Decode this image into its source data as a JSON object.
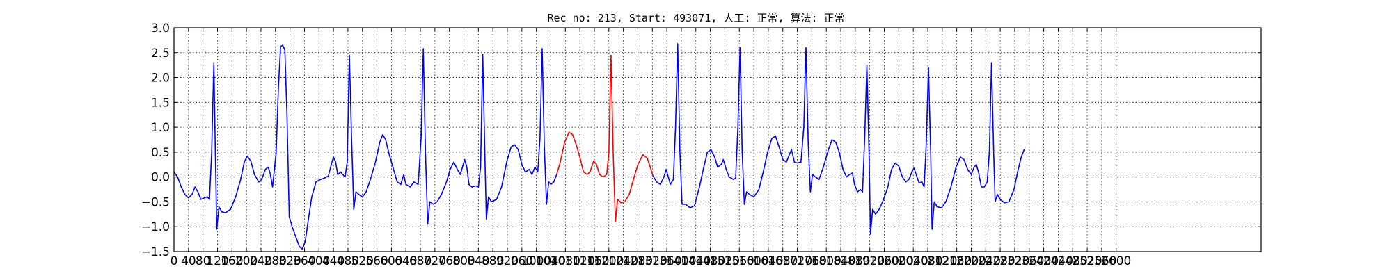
{
  "chart_data": {
    "type": "line",
    "title": "Rec_no: 213, Start: 493071, 人工: 正常, 算法: 正常",
    "xlabel": "",
    "ylabel": "",
    "xlim": [
      0,
      3000
    ],
    "ylim": [
      -1.5,
      3.0
    ],
    "grid": true,
    "grid_style": "dotted",
    "x_ticks": [
      0,
      40,
      80,
      120,
      160,
      200,
      240,
      280,
      320,
      360,
      400,
      440,
      480,
      520,
      560,
      600,
      640,
      680,
      720,
      760,
      800,
      840,
      880,
      920,
      960,
      1000,
      1040,
      1080,
      1120,
      1160,
      1200,
      1240,
      1280,
      1320,
      1360,
      1400,
      1440,
      1480,
      1520,
      1560,
      1600,
      1640,
      1680,
      1720,
      1760,
      1800,
      1840,
      1880,
      1920,
      1960,
      2000,
      2040,
      2080,
      2120,
      2160,
      2200,
      2240,
      2280,
      2320,
      2360,
      2400,
      2440,
      2480,
      2520,
      2560,
      2600
    ],
    "y_ticks": [
      -1.5,
      -1.0,
      -0.5,
      0.0,
      0.5,
      1.0,
      1.5,
      2.0,
      2.5,
      3.0
    ],
    "y_tick_labels": [
      "−1.5",
      "−1.0",
      "−0.5",
      "0.0",
      "0.5",
      "1.0",
      "1.5",
      "2.0",
      "2.5",
      "3.0"
    ],
    "series": [
      {
        "color": "#0000ff",
        "points": [
          [
            0,
            0.1
          ],
          [
            10,
            0.0
          ],
          [
            20,
            -0.2
          ],
          [
            30,
            -0.35
          ],
          [
            40,
            -0.42
          ],
          [
            50,
            -0.35
          ],
          [
            58,
            -0.2
          ],
          [
            66,
            -0.3
          ],
          [
            74,
            -0.45
          ],
          [
            84,
            -0.42
          ],
          [
            92,
            -0.4
          ],
          [
            98,
            -0.45
          ],
          [
            104,
            0.5
          ],
          [
            110,
            2.3
          ],
          [
            114,
            0.5
          ],
          [
            118,
            -1.05
          ],
          [
            124,
            -0.6
          ],
          [
            132,
            -0.7
          ],
          [
            142,
            -0.72
          ],
          [
            156,
            -0.65
          ],
          [
            170,
            -0.4
          ],
          [
            184,
            -0.05
          ],
          [
            194,
            0.3
          ],
          [
            202,
            0.42
          ],
          [
            212,
            0.32
          ],
          [
            222,
            0.05
          ],
          [
            234,
            -0.1
          ],
          [
            242,
            -0.05
          ],
          [
            252,
            0.15
          ],
          [
            260,
            0.2
          ],
          [
            266,
            0.05
          ],
          [
            272,
            -0.2
          ],
          [
            282,
            0.5
          ],
          [
            288,
            1.8
          ],
          [
            294,
            2.62
          ],
          [
            300,
            2.65
          ],
          [
            306,
            2.55
          ],
          [
            312,
            1.2
          ],
          [
            318,
            -0.8
          ],
          [
            326,
            -1.0
          ],
          [
            336,
            -1.2
          ],
          [
            346,
            -1.4
          ],
          [
            354,
            -1.45
          ],
          [
            362,
            -1.3
          ],
          [
            370,
            -0.9
          ],
          [
            380,
            -0.4
          ],
          [
            392,
            -0.1
          ],
          [
            404,
            -0.05
          ],
          [
            416,
            -0.02
          ],
          [
            426,
            0.02
          ],
          [
            434,
            0.25
          ],
          [
            440,
            0.4
          ],
          [
            446,
            0.3
          ],
          [
            452,
            0.05
          ],
          [
            460,
            0.1
          ],
          [
            466,
            0.05
          ],
          [
            472,
            0.0
          ],
          [
            478,
            0.3
          ],
          [
            484,
            2.45
          ],
          [
            490,
            0.8
          ],
          [
            496,
            -0.65
          ],
          [
            502,
            -0.3
          ],
          [
            510,
            -0.35
          ],
          [
            520,
            -0.4
          ],
          [
            530,
            -0.3
          ],
          [
            542,
            -0.05
          ],
          [
            556,
            0.3
          ],
          [
            568,
            0.7
          ],
          [
            576,
            0.85
          ],
          [
            584,
            0.75
          ],
          [
            594,
            0.45
          ],
          [
            606,
            0.15
          ],
          [
            616,
            -0.1
          ],
          [
            626,
            -0.15
          ],
          [
            634,
            0.05
          ],
          [
            640,
            -0.15
          ],
          [
            652,
            -0.2
          ],
          [
            662,
            -0.1
          ],
          [
            674,
            -0.15
          ],
          [
            682,
            0.8
          ],
          [
            688,
            2.58
          ],
          [
            694,
            0.5
          ],
          [
            700,
            -0.95
          ],
          [
            706,
            -0.5
          ],
          [
            716,
            -0.55
          ],
          [
            726,
            -0.5
          ],
          [
            738,
            -0.35
          ],
          [
            752,
            -0.1
          ],
          [
            762,
            0.15
          ],
          [
            772,
            0.3
          ],
          [
            782,
            0.15
          ],
          [
            790,
            0.05
          ],
          [
            796,
            0.2
          ],
          [
            802,
            0.35
          ],
          [
            808,
            0.2
          ],
          [
            814,
            -0.15
          ],
          [
            822,
            -0.2
          ],
          [
            832,
            -0.18
          ],
          [
            840,
            -0.2
          ],
          [
            846,
            0.2
          ],
          [
            852,
            2.47
          ],
          [
            858,
            0.4
          ],
          [
            862,
            -0.85
          ],
          [
            868,
            -0.4
          ],
          [
            876,
            -0.5
          ],
          [
            890,
            -0.45
          ],
          [
            904,
            -0.2
          ],
          [
            918,
            0.3
          ],
          [
            930,
            0.6
          ],
          [
            940,
            0.65
          ],
          [
            950,
            0.55
          ],
          [
            960,
            0.25
          ],
          [
            970,
            0.1
          ],
          [
            980,
            0.15
          ],
          [
            988,
            0.05
          ],
          [
            996,
            0.2
          ],
          [
            1004,
            0.1
          ],
          [
            1010,
            0.8
          ],
          [
            1016,
            2.58
          ],
          [
            1022,
            0.6
          ],
          [
            1028,
            -0.55
          ],
          [
            1034,
            -0.1
          ],
          [
            1040,
            -0.15
          ],
          [
            1048,
            -0.1
          ],
          [
            1056,
            0.05
          ]
        ]
      },
      {
        "color": "#ff0000",
        "points": [
          [
            1056,
            0.05
          ],
          [
            1066,
            0.3
          ],
          [
            1078,
            0.7
          ],
          [
            1090,
            0.9
          ],
          [
            1100,
            0.85
          ],
          [
            1110,
            0.65
          ],
          [
            1120,
            0.4
          ],
          [
            1130,
            0.1
          ],
          [
            1140,
            0.05
          ],
          [
            1148,
            0.1
          ],
          [
            1158,
            0.32
          ],
          [
            1166,
            0.25
          ],
          [
            1174,
            0.05
          ],
          [
            1184,
            0.0
          ],
          [
            1194,
            0.05
          ],
          [
            1200,
            0.5
          ],
          [
            1206,
            2.45
          ],
          [
            1212,
            0.5
          ],
          [
            1218,
            -0.9
          ],
          [
            1224,
            -0.45
          ],
          [
            1234,
            -0.52
          ],
          [
            1244,
            -0.5
          ],
          [
            1256,
            -0.35
          ],
          [
            1268,
            -0.05
          ],
          [
            1280,
            0.25
          ],
          [
            1294,
            0.45
          ],
          [
            1306,
            0.38
          ],
          [
            1314,
            0.2
          ],
          [
            1322,
            0.02
          ]
        ]
      },
      {
        "color": "#0000ff",
        "points": [
          [
            1322,
            0.02
          ],
          [
            1332,
            -0.1
          ],
          [
            1342,
            -0.15
          ],
          [
            1352,
            0.0
          ],
          [
            1358,
            0.15
          ],
          [
            1364,
            0.0
          ],
          [
            1370,
            -0.15
          ],
          [
            1378,
            -0.05
          ],
          [
            1384,
            1.0
          ],
          [
            1390,
            2.68
          ],
          [
            1396,
            0.5
          ],
          [
            1402,
            -0.55
          ],
          [
            1412,
            -0.55
          ],
          [
            1424,
            -0.62
          ],
          [
            1436,
            -0.58
          ],
          [
            1450,
            -0.2
          ],
          [
            1462,
            0.2
          ],
          [
            1472,
            0.5
          ],
          [
            1482,
            0.55
          ],
          [
            1492,
            0.4
          ],
          [
            1500,
            0.2
          ],
          [
            1510,
            0.25
          ],
          [
            1516,
            0.35
          ],
          [
            1524,
            0.15
          ],
          [
            1532,
            0.0
          ],
          [
            1544,
            -0.05
          ],
          [
            1550,
            -0.02
          ],
          [
            1556,
            1.0
          ],
          [
            1562,
            2.6
          ],
          [
            1568,
            0.5
          ],
          [
            1574,
            -0.55
          ],
          [
            1580,
            -0.3
          ],
          [
            1588,
            -0.35
          ],
          [
            1600,
            -0.4
          ],
          [
            1614,
            -0.25
          ],
          [
            1626,
            0.1
          ],
          [
            1638,
            0.5
          ],
          [
            1650,
            0.78
          ],
          [
            1660,
            0.82
          ],
          [
            1670,
            0.6
          ],
          [
            1680,
            0.35
          ],
          [
            1690,
            0.3
          ],
          [
            1698,
            0.45
          ],
          [
            1704,
            0.55
          ],
          [
            1712,
            0.3
          ],
          [
            1720,
            0.28
          ],
          [
            1730,
            0.3
          ],
          [
            1738,
            1.0
          ],
          [
            1744,
            2.6
          ],
          [
            1750,
            0.7
          ],
          [
            1756,
            -0.3
          ],
          [
            1762,
            0.05
          ],
          [
            1770,
            0.0
          ],
          [
            1780,
            -0.05
          ],
          [
            1792,
            0.2
          ],
          [
            1806,
            0.55
          ],
          [
            1816,
            0.75
          ],
          [
            1826,
            0.7
          ],
          [
            1836,
            0.5
          ],
          [
            1846,
            0.15
          ],
          [
            1856,
            0.0
          ],
          [
            1864,
            0.05
          ],
          [
            1872,
            0.08
          ],
          [
            1878,
            -0.15
          ],
          [
            1886,
            -0.3
          ],
          [
            1894,
            -0.25
          ],
          [
            1900,
            -0.3
          ],
          [
            1906,
            0.8
          ],
          [
            1912,
            2.25
          ],
          [
            1918,
            0.5
          ],
          [
            1922,
            -1.15
          ],
          [
            1928,
            -0.65
          ],
          [
            1936,
            -0.75
          ],
          [
            1946,
            -0.65
          ],
          [
            1958,
            -0.45
          ],
          [
            1970,
            -0.2
          ],
          [
            1980,
            0.15
          ],
          [
            1990,
            0.28
          ],
          [
            2000,
            0.22
          ],
          [
            2010,
            0.0
          ],
          [
            2020,
            -0.1
          ],
          [
            2028,
            -0.05
          ],
          [
            2036,
            0.1
          ],
          [
            2042,
            0.18
          ],
          [
            2048,
            0.05
          ],
          [
            2056,
            -0.12
          ],
          [
            2064,
            -0.1
          ],
          [
            2070,
            -0.2
          ],
          [
            2076,
            0.7
          ],
          [
            2082,
            2.2
          ],
          [
            2088,
            0.5
          ],
          [
            2092,
            -1.05
          ],
          [
            2098,
            -0.5
          ],
          [
            2106,
            -0.6
          ],
          [
            2118,
            -0.62
          ],
          [
            2130,
            -0.5
          ],
          [
            2144,
            -0.2
          ],
          [
            2158,
            0.2
          ],
          [
            2170,
            0.4
          ],
          [
            2180,
            0.35
          ],
          [
            2190,
            0.15
          ],
          [
            2200,
            0.05
          ],
          [
            2208,
            0.2
          ],
          [
            2214,
            0.25
          ],
          [
            2220,
            0.1
          ],
          [
            2228,
            -0.2
          ],
          [
            2236,
            -0.2
          ],
          [
            2244,
            -0.1
          ],
          [
            2250,
            0.5
          ],
          [
            2256,
            2.3
          ],
          [
            2262,
            0.5
          ],
          [
            2266,
            -0.5
          ],
          [
            2272,
            -0.35
          ],
          [
            2280,
            -0.45
          ],
          [
            2292,
            -0.52
          ],
          [
            2304,
            -0.5
          ],
          [
            2318,
            -0.25
          ],
          [
            2328,
            0.1
          ],
          [
            2338,
            0.4
          ],
          [
            2346,
            0.55
          ]
        ]
      }
    ]
  }
}
